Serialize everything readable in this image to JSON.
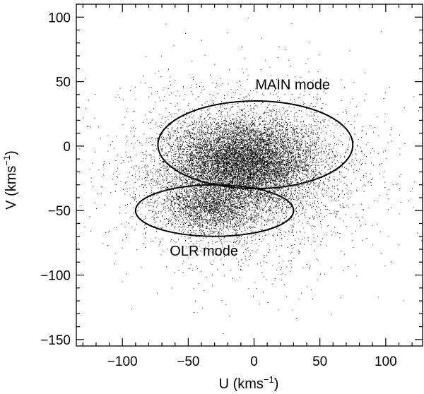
{
  "chart_data": {
    "type": "scatter",
    "title": "",
    "xlabel": "U (kms",
    "xlabel_sup": "−1",
    "xlabel_close": ")",
    "ylabel": "V (kms",
    "ylabel_sup": "−1",
    "ylabel_close": ")",
    "xlim": [
      -135,
      128
    ],
    "ylim": [
      -155,
      110
    ],
    "x_ticks": [
      {
        "value": -100,
        "label": "−100"
      },
      {
        "value": -50,
        "label": "−50"
      },
      {
        "value": 0,
        "label": "0"
      },
      {
        "value": 50,
        "label": "50"
      },
      {
        "value": 100,
        "label": "100"
      }
    ],
    "y_ticks": [
      {
        "value": 100,
        "label": "100"
      },
      {
        "value": 50,
        "label": "50"
      },
      {
        "value": 0,
        "label": "0"
      },
      {
        "value": -50,
        "label": "−50"
      },
      {
        "value": -100,
        "label": "−100"
      },
      {
        "value": -150,
        "label": "−150"
      }
    ],
    "x_minor_step": 10,
    "y_minor_step": 10,
    "grid": false,
    "ellipses": [
      {
        "name": "main-mode-ellipse",
        "cx": 1,
        "cy": 1,
        "rx": 74,
        "ry": 34
      },
      {
        "name": "olr-mode-ellipse",
        "cx": -30,
        "cy": -50,
        "rx": 60,
        "ry": 20
      }
    ],
    "annotations": [
      {
        "name": "main-mode-label",
        "text": "MAIN mode",
        "x": 1,
        "y": 44
      },
      {
        "name": "olr-mode-label",
        "text": "OLR mode",
        "x": -64,
        "y": -85
      }
    ],
    "point_distributions": [
      {
        "component": "main",
        "mean_u": -8,
        "mean_v": -12,
        "sd_u": 28,
        "sd_v": 16,
        "count": 9000
      },
      {
        "component": "olr",
        "mean_u": -32,
        "mean_v": -48,
        "sd_u": 20,
        "sd_v": 11,
        "count": 2200
      },
      {
        "component": "halo",
        "mean_u": -5,
        "mean_v": -22,
        "sd_u": 48,
        "sd_v": 36,
        "count": 3200
      }
    ]
  }
}
